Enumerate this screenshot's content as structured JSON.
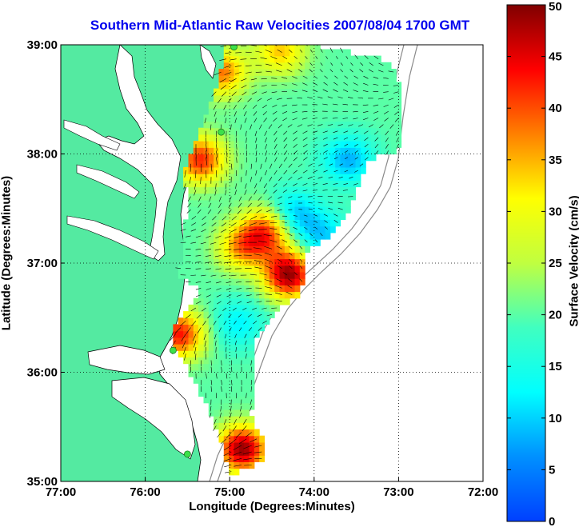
{
  "chart_data": {
    "type": "heatmap",
    "title": "Southern Mid-Atlantic Raw Velocities 2007/08/04 1700 GMT",
    "xlabel": "Longitude (Degrees:Minutes)",
    "ylabel": "Latitude (Degrees:Minutes)",
    "colorbar_label": "Surface Velocity (cm/s)",
    "xlim": [
      -77,
      -72
    ],
    "ylim": [
      35,
      39
    ],
    "x_ticks": [
      {
        "value": -77,
        "label": "77:00"
      },
      {
        "value": -76,
        "label": "76:00"
      },
      {
        "value": -75,
        "label": "75:00"
      },
      {
        "value": -74,
        "label": "74:00"
      },
      {
        "value": -73,
        "label": "73:00"
      },
      {
        "value": -72,
        "label": "72:00"
      }
    ],
    "y_ticks": [
      {
        "value": 39,
        "label": "39:00"
      },
      {
        "value": 38,
        "label": "38:00"
      },
      {
        "value": 37,
        "label": "37:00"
      },
      {
        "value": 36,
        "label": "36:00"
      },
      {
        "value": 35,
        "label": "35:00"
      }
    ],
    "colorbar_range": [
      0,
      50
    ],
    "colorbar_ticks": [
      "0",
      "5",
      "10",
      "15",
      "20",
      "25",
      "30",
      "35",
      "40",
      "45",
      "50"
    ],
    "grid": "dotted",
    "colormap": "jet",
    "colors": {
      "land": "#54eaa1",
      "title": "#0000ee",
      "station": "#3ce04a"
    },
    "speed_peaks": [
      {
        "lon": -75.1,
        "lat": 38.75,
        "speed": 38
      },
      {
        "lon": -74.4,
        "lat": 38.95,
        "speed": 34
      },
      {
        "lon": -75.35,
        "lat": 37.95,
        "speed": 42
      },
      {
        "lon": -74.55,
        "lat": 37.3,
        "speed": 40
      },
      {
        "lon": -74.3,
        "lat": 36.9,
        "speed": 49
      },
      {
        "lon": -75.6,
        "lat": 36.35,
        "speed": 43
      },
      {
        "lon": -74.85,
        "lat": 35.3,
        "speed": 49
      },
      {
        "lon": -74.85,
        "lat": 37.15,
        "speed": 36
      },
      {
        "lon": -73.6,
        "lat": 37.95,
        "speed": 8
      },
      {
        "lon": -74.25,
        "lat": 37.45,
        "speed": 8
      },
      {
        "lon": -73.9,
        "lat": 37.25,
        "speed": 10
      },
      {
        "lon": -74.9,
        "lat": 36.45,
        "speed": 12
      }
    ],
    "stations": [
      {
        "lon": -74.95,
        "lat": 38.98
      },
      {
        "lon": -75.1,
        "lat": 38.2
      },
      {
        "lon": -75.67,
        "lat": 36.2
      },
      {
        "lon": -75.5,
        "lat": 35.25
      }
    ]
  }
}
